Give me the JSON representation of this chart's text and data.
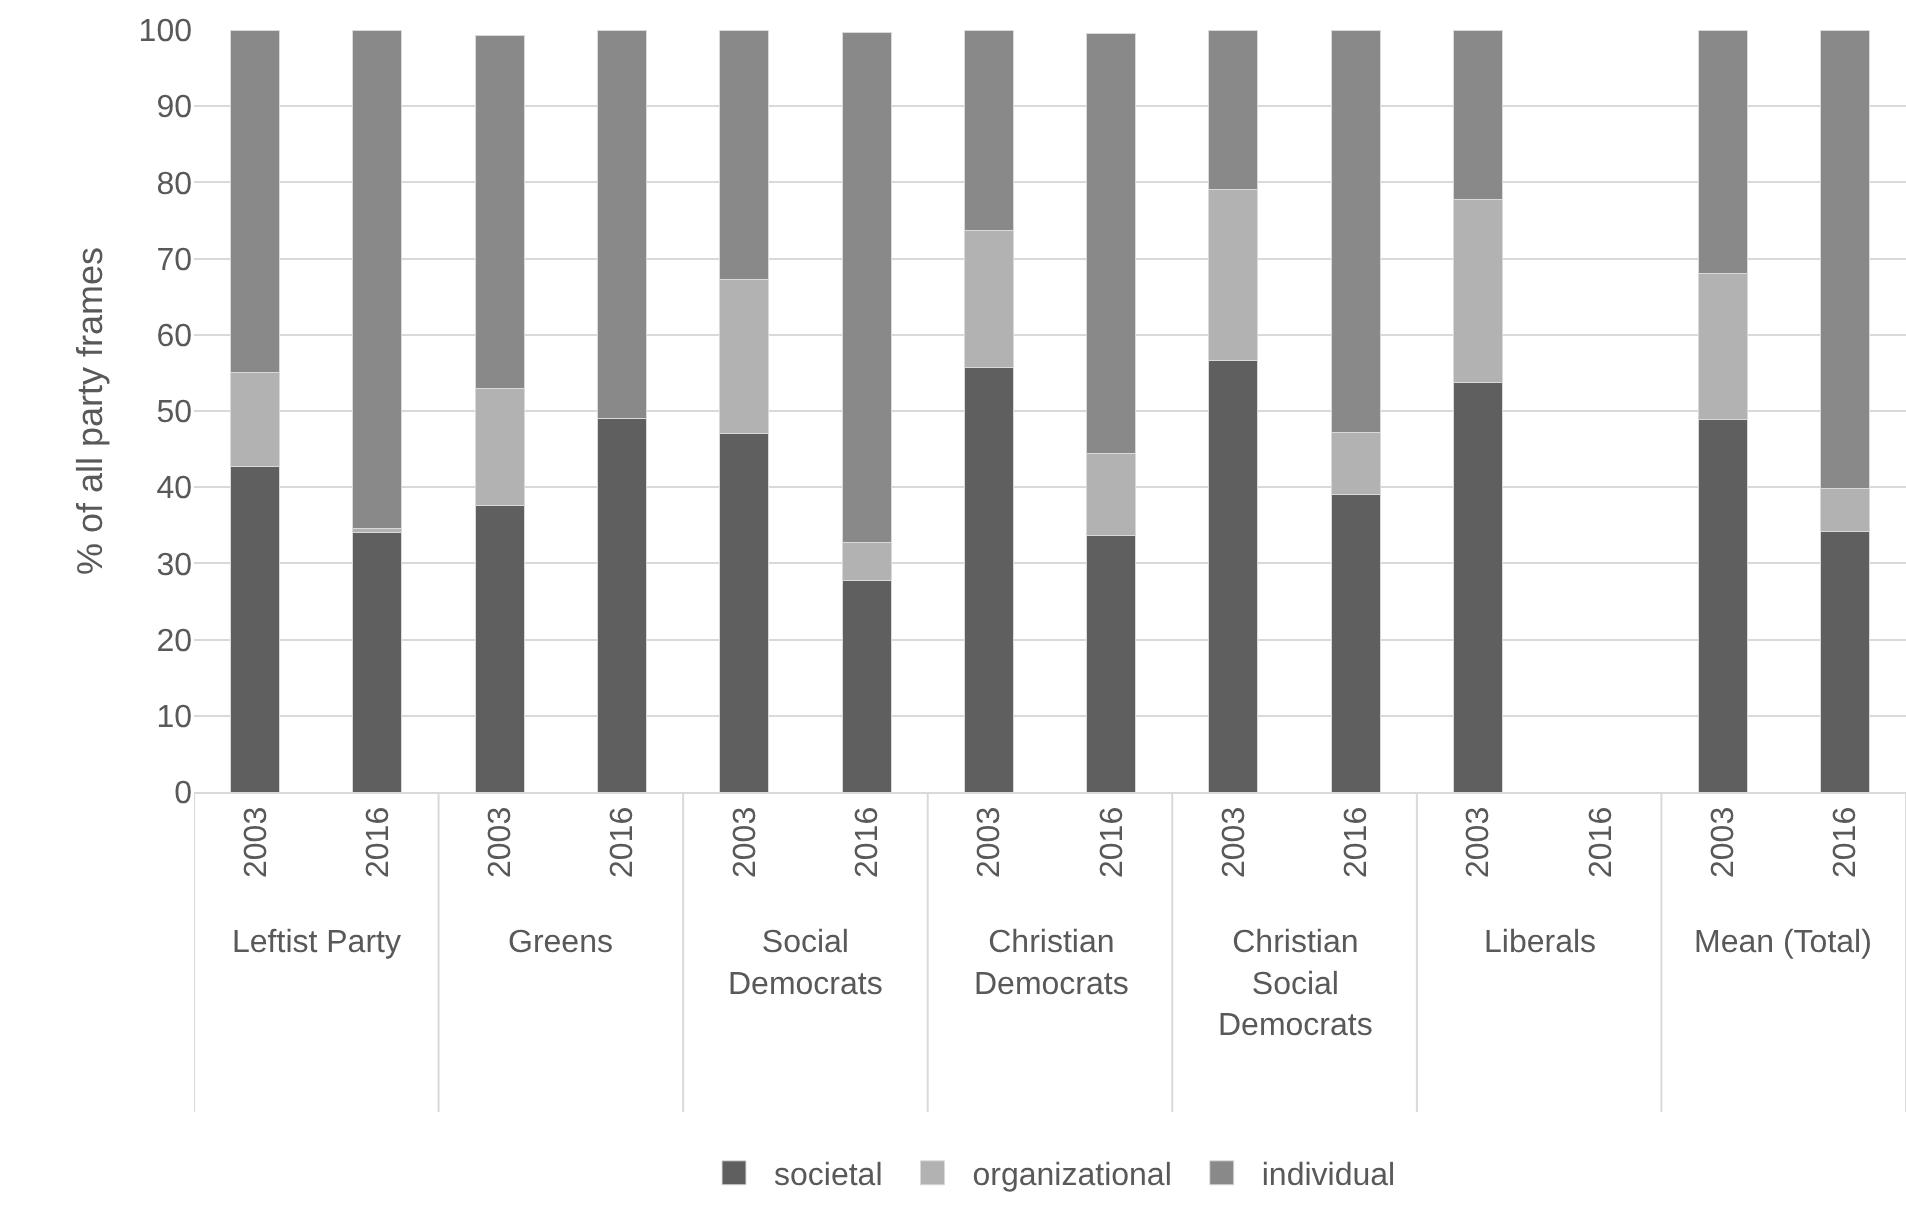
{
  "chart_data": {
    "type": "bar",
    "stacked": true,
    "ylabel": "% of all party frames",
    "categories": [
      "2003",
      "2016",
      "2003",
      "2016",
      "2003",
      "2016",
      "2003",
      "2016",
      "2003",
      "2016",
      "2003",
      "2016",
      "2003",
      "2016"
    ],
    "annotations": [
      "Leftist Party",
      "Greens",
      "Social Democrats",
      "Christian Democrats",
      "Christian Social Democrats",
      "Liberals",
      "Mean (Total)"
    ],
    "series": [
      {
        "name": "societal",
        "color": "#5f5f5f",
        "values": [
          42.7,
          34.1,
          37.6,
          49.0,
          47.1,
          27.7,
          55.7,
          33.6,
          56.6,
          39.0,
          53.8,
          null,
          48.9,
          34.2
        ]
      },
      {
        "name": "organizational",
        "color": "#b2b2b2",
        "values": [
          12.3,
          0.5,
          15.3,
          0,
          20.2,
          5.1,
          18.0,
          10.8,
          22.5,
          8.2,
          24.0,
          null,
          19.2,
          5.6
        ]
      },
      {
        "name": "individual",
        "color": "#898989",
        "values": [
          45.0,
          65.4,
          46.4,
          51.0,
          32.7,
          66.9,
          26.3,
          55.1,
          20.9,
          52.8,
          22.2,
          null,
          31.9,
          60.2
        ]
      }
    ],
    "ylim": [
      0,
      100
    ],
    "yticks": [
      0,
      10,
      20,
      30,
      40,
      50,
      60,
      70,
      80,
      90,
      100
    ],
    "grid": "y",
    "legend": "bottom"
  }
}
